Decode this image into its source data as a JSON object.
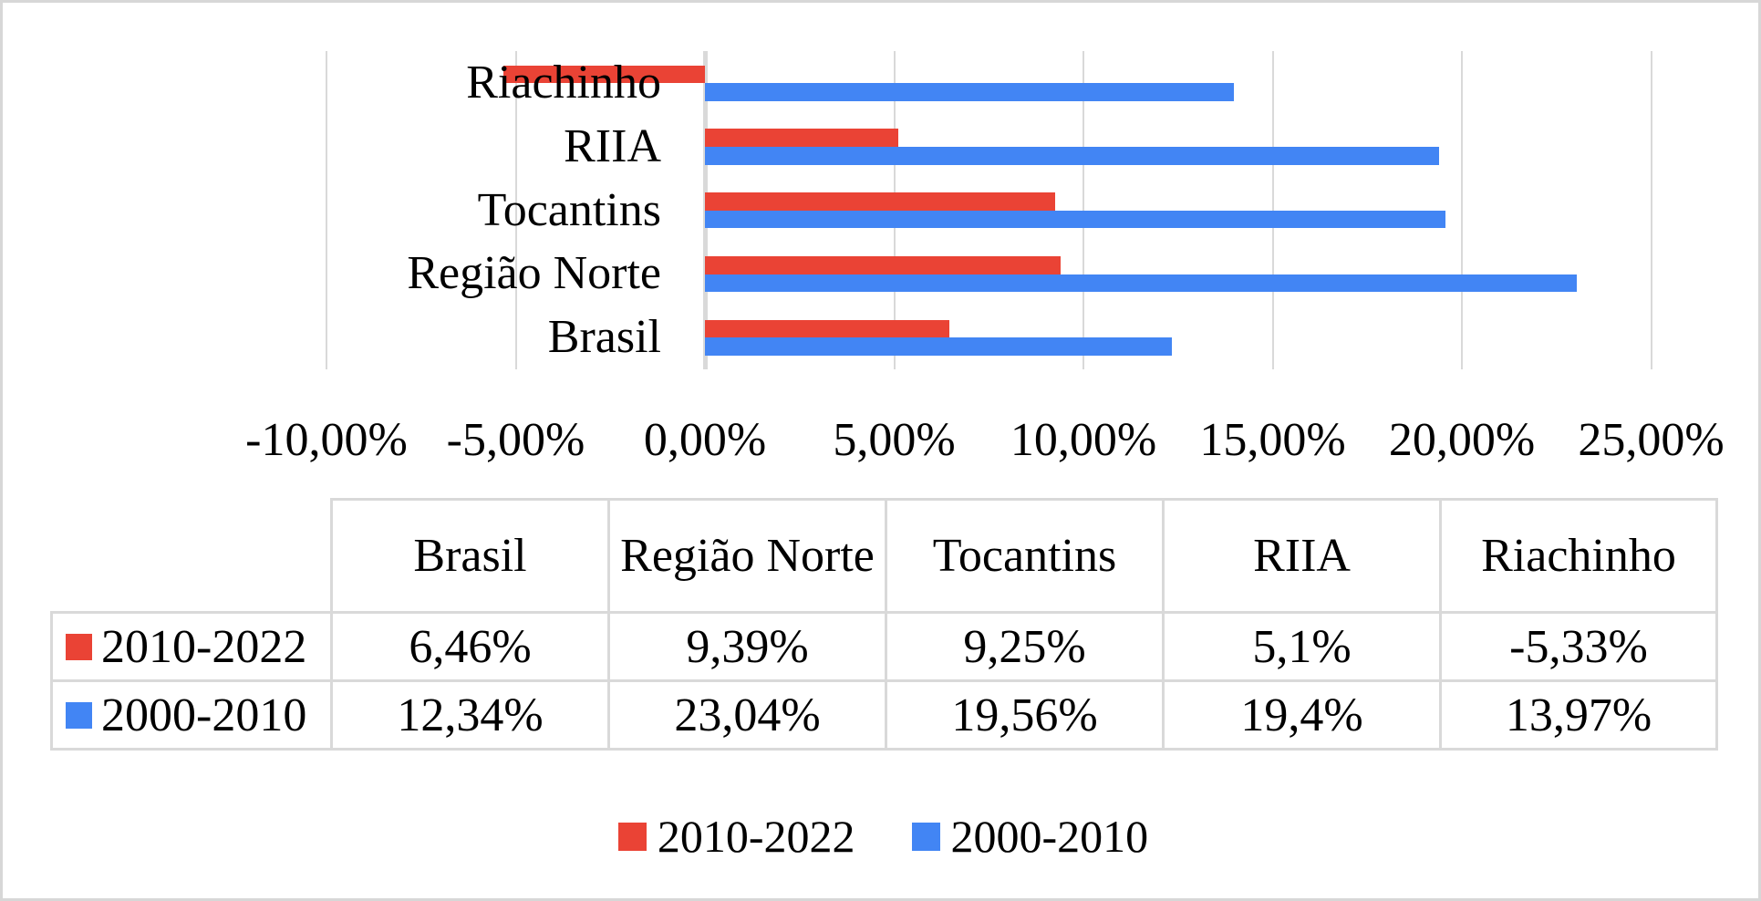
{
  "colors": {
    "series_red": "#ea4335",
    "series_blue": "#4285f4",
    "gridline": "#d9d9d9",
    "table_border": "#d9d9d9",
    "canvas_border": "#d7d7d7",
    "text": "#000000"
  },
  "chart_data": {
    "type": "bar",
    "orientation": "horizontal",
    "title": "",
    "categories_top_to_bottom": [
      "Riachinho",
      "RIIA",
      "Tocantins",
      "Região Norte",
      "Brasil"
    ],
    "series": [
      {
        "name": "2010-2022",
        "color": "#ea4335",
        "values": [
          -5.33,
          5.1,
          9.25,
          9.39,
          6.46
        ]
      },
      {
        "name": "2000-2010",
        "color": "#4285f4",
        "values": [
          13.97,
          19.4,
          19.56,
          23.04,
          12.34
        ]
      }
    ],
    "x_axis": {
      "min": -10,
      "max": 25,
      "step": 5,
      "tick_labels": [
        "-10,00%",
        "-5,00%",
        "0,00%",
        "5,00%",
        "10,00%",
        "15,00%",
        "20,00%",
        "25,00%"
      ],
      "grid": true
    },
    "legend_position": "bottom"
  },
  "table": {
    "corner_label": "",
    "column_headers": [
      "Brasil",
      "Região Norte",
      "Tocantins",
      "RIIA",
      "Riachinho"
    ],
    "rows": [
      {
        "label": "2010-2022",
        "swatch_color": "#ea4335",
        "values": [
          "6,46%",
          "9,39%",
          "9,25%",
          "5,1%",
          "-5,33%"
        ]
      },
      {
        "label": "2000-2010",
        "swatch_color": "#4285f4",
        "values": [
          "12,34%",
          "23,04%",
          "19,56%",
          "19,4%",
          "13,97%"
        ]
      }
    ]
  },
  "legend": {
    "items": [
      {
        "label": "2010-2022",
        "color": "#ea4335"
      },
      {
        "label": "2000-2010",
        "color": "#4285f4"
      }
    ]
  }
}
